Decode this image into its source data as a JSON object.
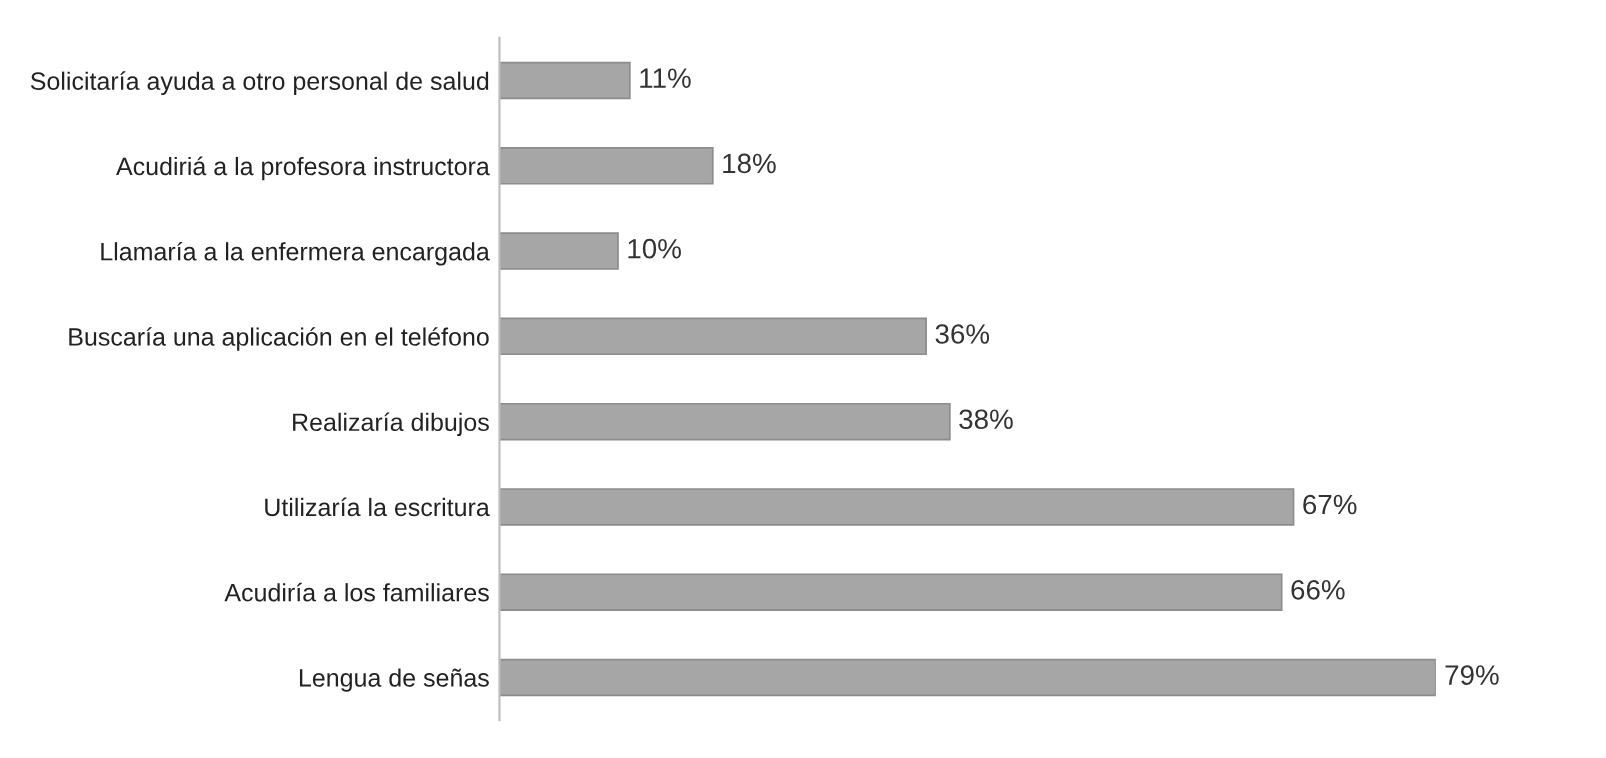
{
  "chart_data": {
    "type": "bar",
    "orientation": "horizontal",
    "categories": [
      "Solicitaría ayuda a otro personal de salud",
      "Acudiriá a la profesora instructora",
      "Llamaría a la enfermera encargada",
      "Buscaría una aplicación en el teléfono",
      "Realizaría dibujos",
      "Utilizaría la escritura",
      "Acudiría a los familiares",
      "Lengua de señas"
    ],
    "values": [
      11,
      18,
      10,
      36,
      38,
      67,
      66,
      79
    ],
    "value_labels": [
      "11%",
      "18%",
      "10%",
      "36%",
      "38%",
      "67%",
      "66%",
      "79%"
    ],
    "color": "#a6a6a6",
    "tick_labels": "y"
  }
}
